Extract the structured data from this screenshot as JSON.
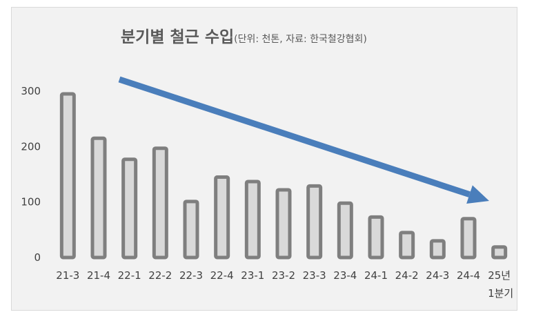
{
  "chart_data": {
    "type": "bar",
    "title": "분기별 철근 수입",
    "subtitle": "(단위: 천톤, 자료: 한국철강협회)",
    "categories": [
      "21-3",
      "21-4",
      "22-1",
      "22-2",
      "22-3",
      "22-4",
      "23-1",
      "23-2",
      "23-3",
      "23-4",
      "24-1",
      "24-2",
      "24-3",
      "24-4",
      "25년 1분기"
    ],
    "category_lines": [
      [
        "21-3"
      ],
      [
        "21-4"
      ],
      [
        "22-1"
      ],
      [
        "22-2"
      ],
      [
        "22-3"
      ],
      [
        "22-4"
      ],
      [
        "23-1"
      ],
      [
        "23-2"
      ],
      [
        "23-3"
      ],
      [
        "23-4"
      ],
      [
        "24-1"
      ],
      [
        "24-2"
      ],
      [
        "24-3"
      ],
      [
        "24-4"
      ],
      [
        "25년",
        "1분기"
      ]
    ],
    "values": [
      295,
      215,
      177,
      197,
      101,
      145,
      137,
      122,
      129,
      98,
      73,
      45,
      30,
      70,
      19
    ],
    "ylim": [
      0,
      300
    ],
    "yticks": [
      0,
      100,
      200,
      300
    ],
    "grid": false,
    "annotation": "downward trend arrow",
    "colors": {
      "bar_fill": "#d9d9d9",
      "bar_outline": "#7f7f7f",
      "arrow": "#4a7ebb",
      "background": "#f2f2f2"
    }
  }
}
